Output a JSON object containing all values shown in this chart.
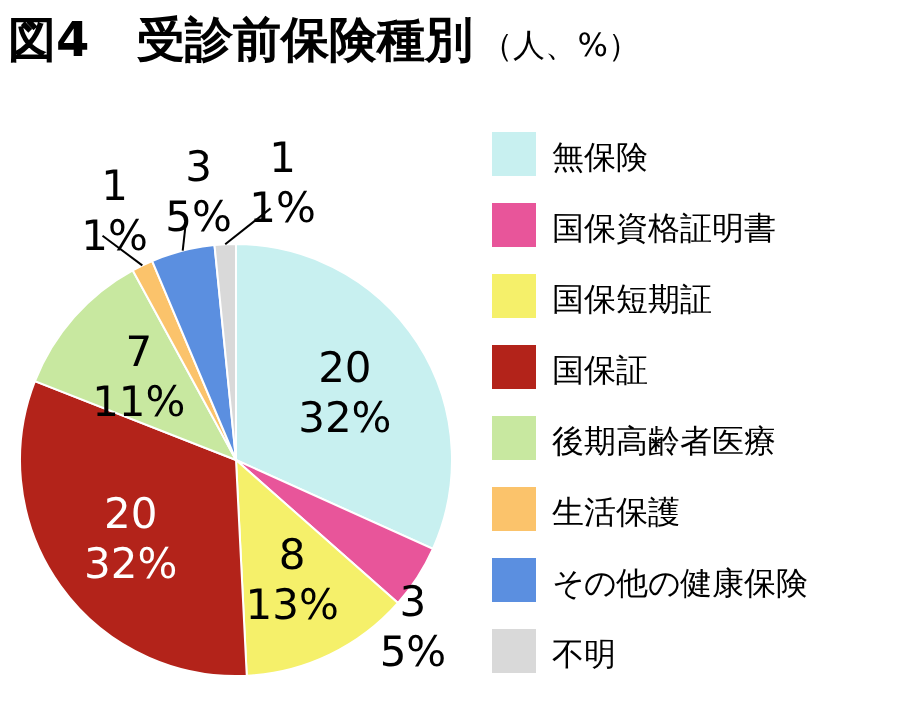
{
  "chart_data": {
    "type": "pie",
    "title": "図4　受診前保険種別",
    "subtitle": "（人、%）",
    "categories": [
      "無保険",
      "国保資格証明書",
      "国保短期証",
      "国保証",
      "後期高齢者医療",
      "生活保護",
      "その他の健康保険",
      "不明"
    ],
    "values": [
      20,
      3,
      8,
      20,
      7,
      1,
      3,
      1
    ],
    "colors": [
      "#c8f0f0",
      "#e8559a",
      "#f5f06a",
      "#b3231a",
      "#c8e8a0",
      "#fbc36b",
      "#5b8fe0",
      "#d9d9d9"
    ],
    "value_labels": [
      "20\n32%",
      "3\n5%",
      "8\n13%",
      "20\n32%",
      "7\n11%",
      "1\n1%",
      "3\n5%",
      "1\n1%"
    ],
    "legend": "right"
  }
}
